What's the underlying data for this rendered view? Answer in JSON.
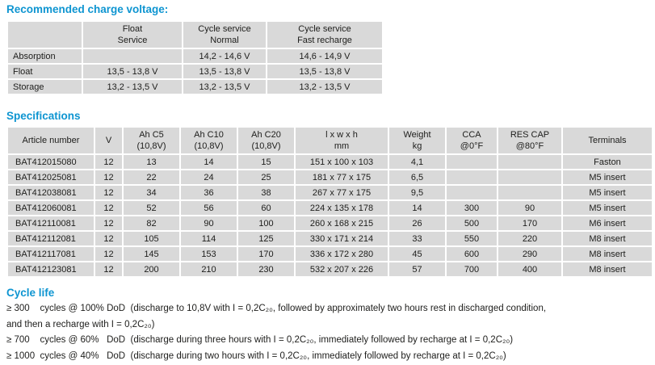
{
  "headings": {
    "charge": "Recommended charge voltage:",
    "specs": "Specifications",
    "cycle": "Cycle life"
  },
  "colors": {
    "accent_blue": "#0e95d1",
    "cell_gray": "#d9d9d9",
    "text": "#1d1d1b"
  },
  "charge_table": {
    "columns": [
      "",
      "Float\nService",
      "Cycle service\nNormal",
      "Cycle service\nFast recharge"
    ],
    "rows": [
      {
        "label": "Absorption",
        "values": [
          "",
          "14,2 - 14,6 V",
          "14,6 - 14,9 V"
        ]
      },
      {
        "label": "Float",
        "values": [
          "13,5 - 13,8 V",
          "13,5 - 13,8 V",
          "13,5 - 13,8 V"
        ]
      },
      {
        "label": "Storage",
        "values": [
          "13,2 - 13,5 V",
          "13,2 - 13,5 V",
          "13,2 - 13,5 V"
        ]
      }
    ]
  },
  "specs_table": {
    "columns": [
      "Article number",
      "V",
      "Ah C5\n(10,8V)",
      "Ah C10\n(10,8V)",
      "Ah C20\n(10,8V)",
      "l x w x h\nmm",
      "Weight\nkg",
      "CCA\n@0°F",
      "RES CAP\n@80°F",
      "Terminals"
    ],
    "rows": [
      [
        "BAT412015080",
        "12",
        "13",
        "14",
        "15",
        "151 x 100 x 103",
        "4,1",
        "",
        "",
        "Faston"
      ],
      [
        "BAT412025081",
        "12",
        "22",
        "24",
        "25",
        "181 x 77 x 175",
        "6,5",
        "",
        "",
        "M5 insert"
      ],
      [
        "BAT412038081",
        "12",
        "34",
        "36",
        "38",
        "267 x 77 x 175",
        "9,5",
        "",
        "",
        "M5 insert"
      ],
      [
        "BAT412060081",
        "12",
        "52",
        "56",
        "60",
        "224 x 135 x 178",
        "14",
        "300",
        "90",
        "M5 insert"
      ],
      [
        "BAT412110081",
        "12",
        "82",
        "90",
        "100",
        "260 x 168 x 215",
        "26",
        "500",
        "170",
        "M6 insert"
      ],
      [
        "BAT412112081",
        "12",
        "105",
        "114",
        "125",
        "330 x 171 x 214",
        "33",
        "550",
        "220",
        "M8 insert"
      ],
      [
        "BAT412117081",
        "12",
        "145",
        "153",
        "170",
        "336 x 172 x 280",
        "45",
        "600",
        "290",
        "M8 insert"
      ],
      [
        "BAT412123081",
        "12",
        "200",
        "210",
        "230",
        "532 x 207 x 226",
        "57",
        "700",
        "400",
        "M8 insert"
      ]
    ]
  },
  "cycle_life": {
    "lines": [
      "≥ 300    cycles @ 100% DoD  (discharge to 10,8V with I = 0,2C₂₀, followed by approximately two hours rest in discharged condition,",
      "and then a recharge with I = 0,2C₂₀)",
      "≥ 700    cycles @ 60%   DoD  (discharge during three hours with I = 0,2C₂₀, immediately followed by recharge at I = 0,2C₂₀)",
      "≥ 1000  cycles @ 40%   DoD  (discharge during two hours with I = 0,2C₂₀, immediately followed by recharge at I = 0,2C₂₀)"
    ]
  }
}
